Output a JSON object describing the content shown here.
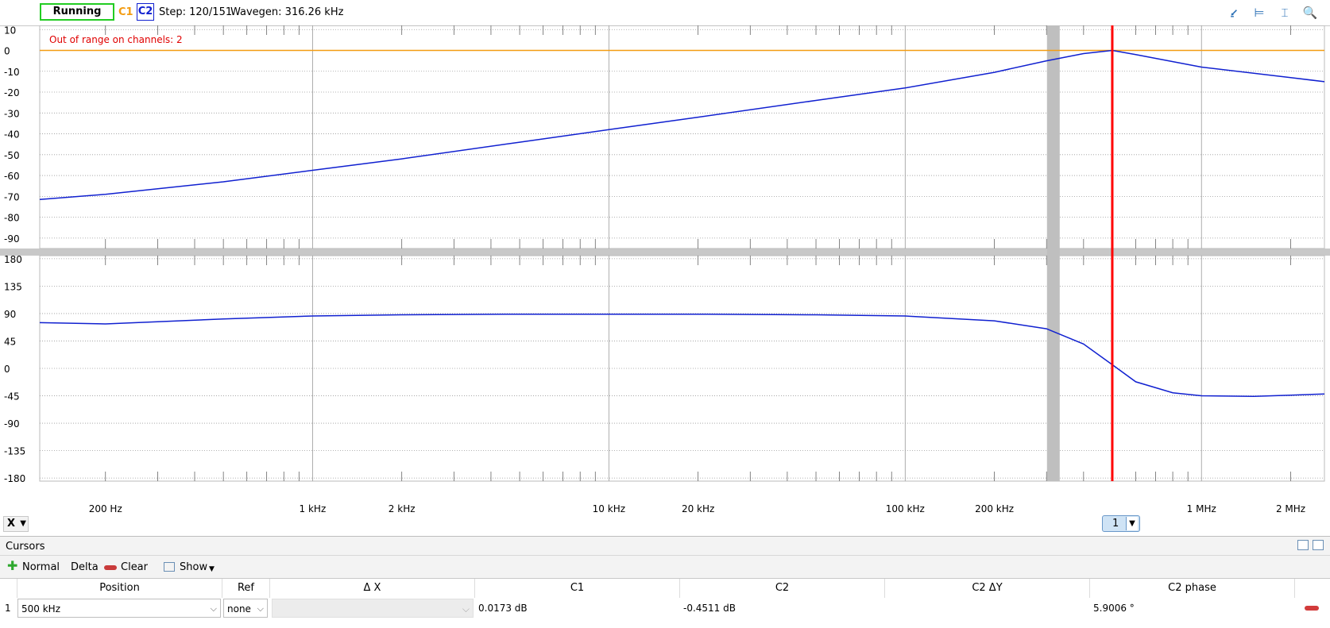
{
  "toolbar": {
    "status": "Running",
    "c1": "C1",
    "c2": "C2",
    "step": "Step: 120/151",
    "wavegen": "Wavegen: 316.26 kHz",
    "icons": [
      "cursor-arrow-icon",
      "horizontal-measure-icon",
      "vertical-measure-icon",
      "zoom-icon"
    ]
  },
  "colors": {
    "c1": "#f39c12",
    "c2": "#1020d0",
    "cursor": "#ff0000",
    "running": "#22cc22"
  },
  "plot": {
    "warning": "Out of range on channels: 2",
    "x_button": "X",
    "cursor_tab": "1"
  },
  "chart_data": [
    {
      "type": "line",
      "scale": "log-x",
      "xlim": [
        120,
        2600000
      ],
      "ylim": [
        -95,
        12
      ],
      "yticks": [
        10,
        0,
        -10,
        -20,
        -30,
        -40,
        -50,
        -60,
        -70,
        -80,
        -90
      ],
      "series": [
        {
          "color": "#f39c12",
          "x": [
            120,
            2600000
          ],
          "y": [
            0,
            0
          ]
        },
        {
          "color": "#1020d0",
          "x": [
            120,
            200,
            500,
            1000,
            2000,
            5000,
            10000,
            20000,
            50000,
            100000,
            200000,
            300000,
            400000,
            500000,
            600000,
            1000000,
            2000000,
            2600000
          ],
          "y": [
            -71.5,
            -69,
            -63,
            -57.5,
            -52,
            -44,
            -38,
            -32,
            -24,
            -18,
            -10.5,
            -5,
            -1.5,
            0,
            -2,
            -8,
            -13,
            -15
          ]
        }
      ]
    },
    {
      "type": "line",
      "scale": "log-x",
      "xlim": [
        120,
        2600000
      ],
      "ylim": [
        -185,
        185
      ],
      "yticks": [
        180,
        135,
        90,
        45,
        0,
        -45,
        -90,
        -135,
        -180
      ],
      "series": [
        {
          "color": "#1020d0",
          "x": [
            120,
            200,
            500,
            1000,
            2000,
            5000,
            10000,
            20000,
            50000,
            100000,
            200000,
            300000,
            400000,
            500000,
            600000,
            800000,
            1000000,
            1500000,
            2000000,
            2600000
          ],
          "y": [
            75,
            73,
            81,
            86,
            88,
            89,
            89,
            89,
            88,
            86,
            78,
            65,
            40,
            6,
            -22,
            -40,
            -45,
            -46,
            -44,
            -42
          ]
        }
      ]
    }
  ],
  "x_axis": {
    "ticks": [
      {
        "value": 200,
        "label": "200 Hz"
      },
      {
        "value": 1000,
        "label": "1 kHz"
      },
      {
        "value": 2000,
        "label": "2 kHz"
      },
      {
        "value": 10000,
        "label": "10 kHz"
      },
      {
        "value": 20000,
        "label": "20 kHz"
      },
      {
        "value": 100000,
        "label": "100 kHz"
      },
      {
        "value": 200000,
        "label": "200 kHz"
      },
      {
        "value": 1000000,
        "label": "1 MHz"
      },
      {
        "value": 2000000,
        "label": "2 MHz"
      }
    ],
    "cursor_freq": 500000,
    "wavegen_freq": 316260
  },
  "cursors": {
    "title": "Cursors",
    "toolbar": {
      "normal": "Normal",
      "delta": "Delta",
      "clear": "Clear",
      "show": "Show"
    },
    "columns": [
      "Position",
      "Ref",
      "Δ X",
      "C1",
      "C2",
      "C2 ΔY",
      "C2 phase"
    ],
    "row": {
      "index": "1",
      "position": "500 kHz",
      "ref": "none",
      "dx": "",
      "c1": "0.0173 dB",
      "c2": "-0.4511 dB",
      "c2dy": "",
      "c2phase": "5.9006 °"
    }
  }
}
